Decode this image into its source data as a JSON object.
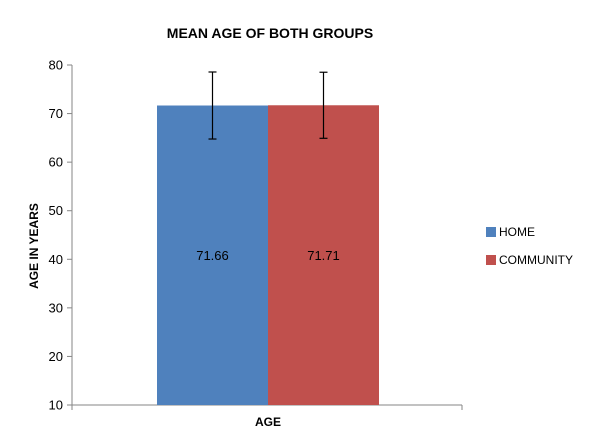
{
  "chart_data": {
    "type": "bar",
    "title": "MEAN AGE OF BOTH GROUPS",
    "xlabel": "AGE",
    "ylabel": "AGE  IN YEARS",
    "categories": [
      "AGE"
    ],
    "ylim": [
      10,
      80
    ],
    "yticks": [
      10,
      20,
      30,
      40,
      50,
      60,
      70,
      80
    ],
    "grid": false,
    "legend_position": "right",
    "series": [
      {
        "name": "HOME",
        "values": [
          71.66
        ],
        "error": [
          6.9
        ],
        "data_label": "71.66",
        "color": "#4f81bd"
      },
      {
        "name": "COMMUNITY",
        "values": [
          71.71
        ],
        "error": [
          6.8
        ],
        "data_label": "71.71",
        "color": "#c0504d"
      }
    ]
  }
}
